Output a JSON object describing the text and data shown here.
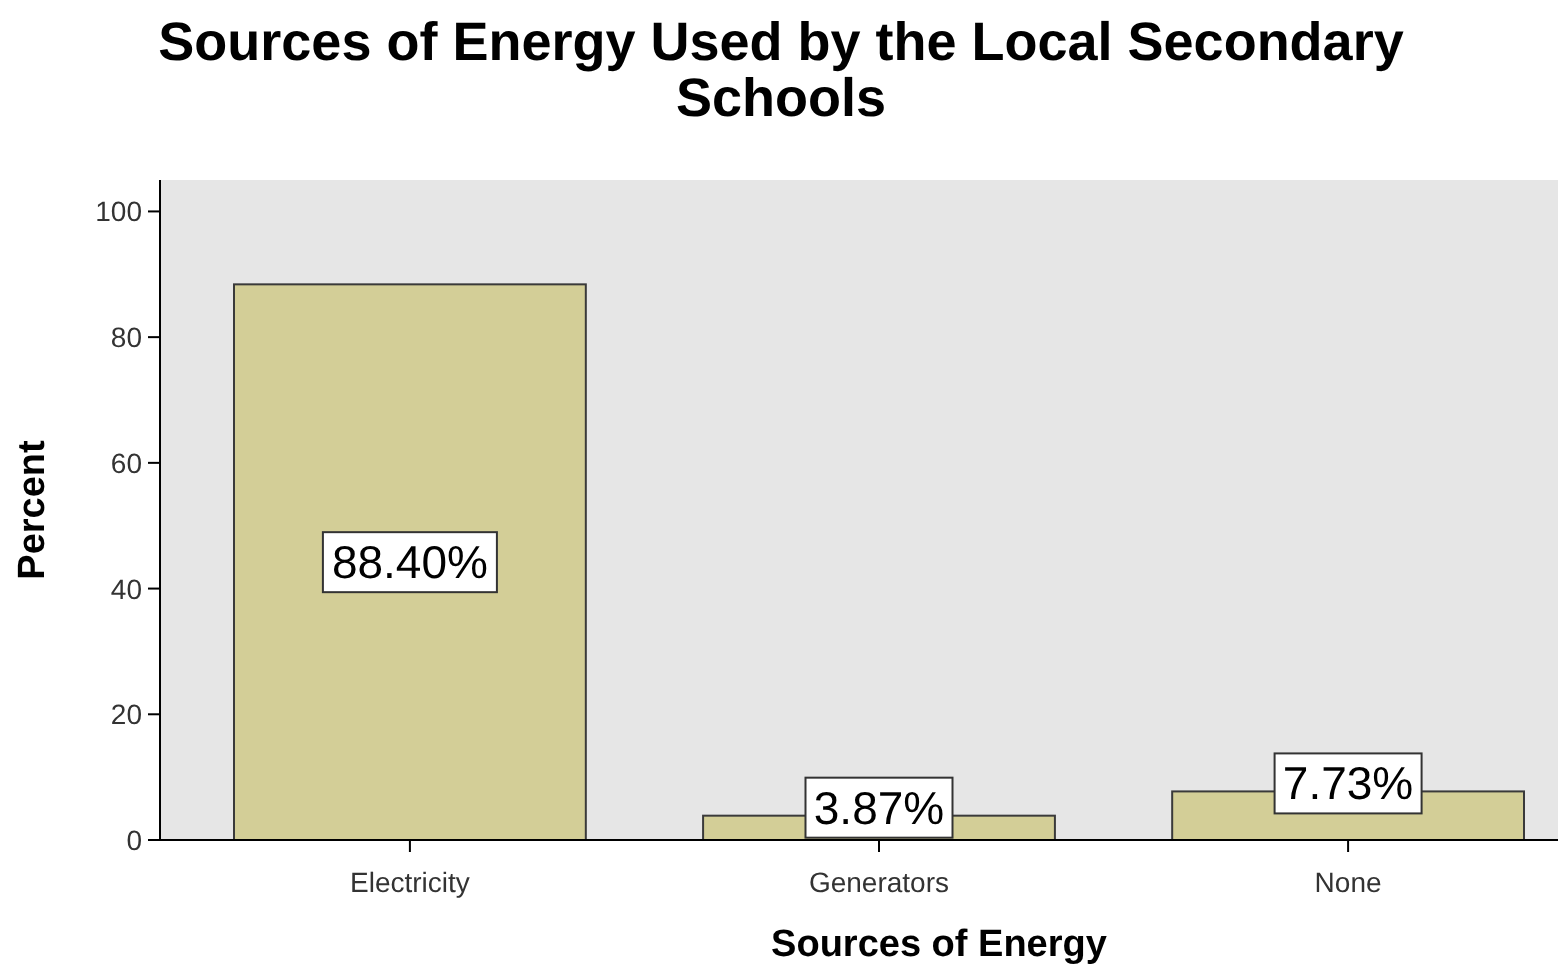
{
  "chart_data": {
    "type": "bar",
    "title": "Sources of Energy Used by the Local Secondary Schools",
    "xlabel": "Sources of Energy",
    "ylabel": "Percent",
    "categories": [
      "Electricity",
      "Generators",
      "None"
    ],
    "values": [
      88.4,
      3.87,
      7.73
    ],
    "value_labels": [
      "88.40%",
      "3.87%",
      "7.73%"
    ],
    "color": "#d3ce97",
    "ylim": [
      0,
      105
    ],
    "yticks": [
      0,
      20,
      40,
      60,
      80,
      100
    ],
    "grid": false
  }
}
